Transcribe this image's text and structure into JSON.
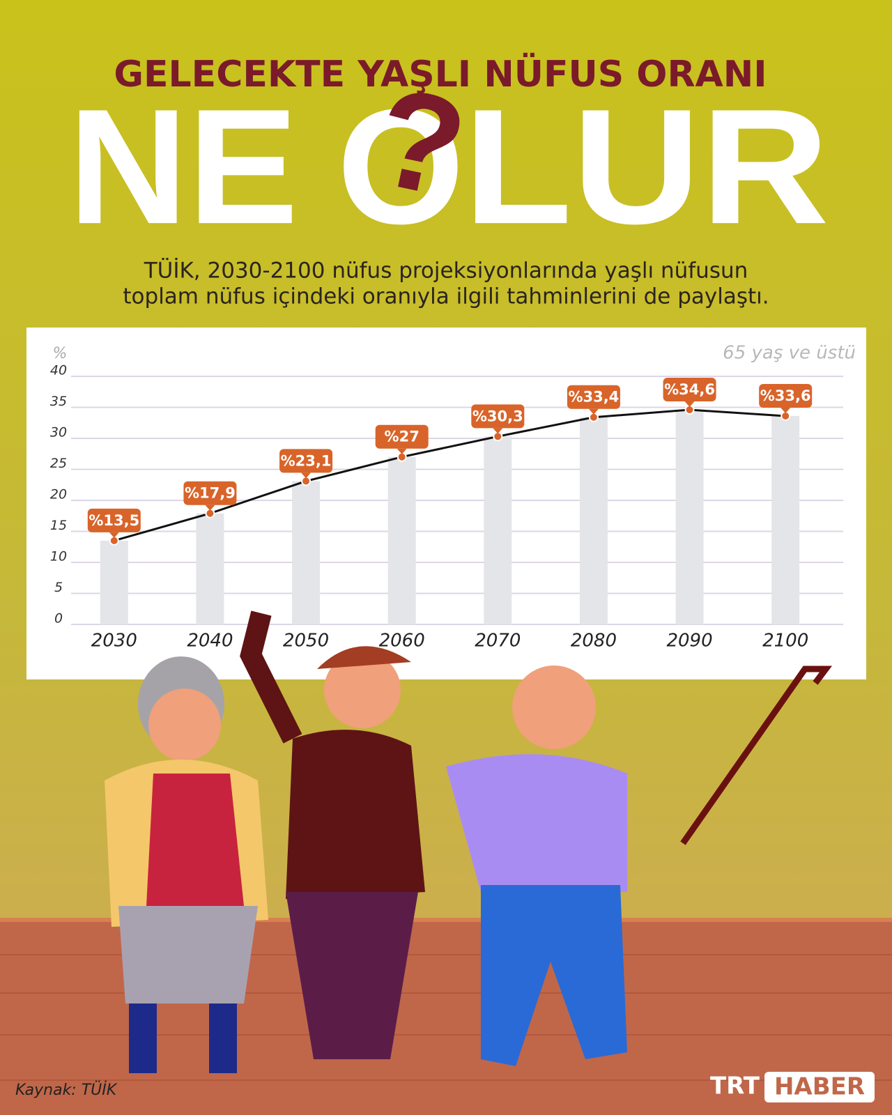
{
  "header": {
    "title": "GELECEKTE YAŞLI NÜFUS ORANI",
    "headline": [
      "NE",
      "O",
      "LUR"
    ],
    "headline_mark": "?",
    "subtitle": [
      "TÜİK, 2030-2100 nüfus projeksiyonlarında yaşlı nüfusun",
      "toplam nüfus içindeki oranıyla ilgili tahminlerini de paylaştı."
    ]
  },
  "chart_data": {
    "type": "line",
    "y_label": "%",
    "note": "65 yaş ve üstü",
    "categories": [
      "2030",
      "2040",
      "2050",
      "2060",
      "2070",
      "2080",
      "2090",
      "2100"
    ],
    "values": [
      13.5,
      17.9,
      23.1,
      27,
      30.3,
      33.4,
      34.6,
      33.6
    ],
    "value_labels": [
      "%13,5",
      "%17,9",
      "%23,1",
      "%27",
      "%30,3",
      "%33,4",
      "%34,6",
      "%33,6"
    ],
    "color": "#d8642a",
    "bar_color": "#e3e5e9",
    "ylim": [
      0,
      40
    ],
    "yticks": [
      0,
      5,
      10,
      15,
      20,
      25,
      30,
      35,
      40
    ],
    "grid": true
  },
  "footer": {
    "source": "Kaynak: TÜİK",
    "logo": [
      "TRT",
      "HABER"
    ]
  }
}
